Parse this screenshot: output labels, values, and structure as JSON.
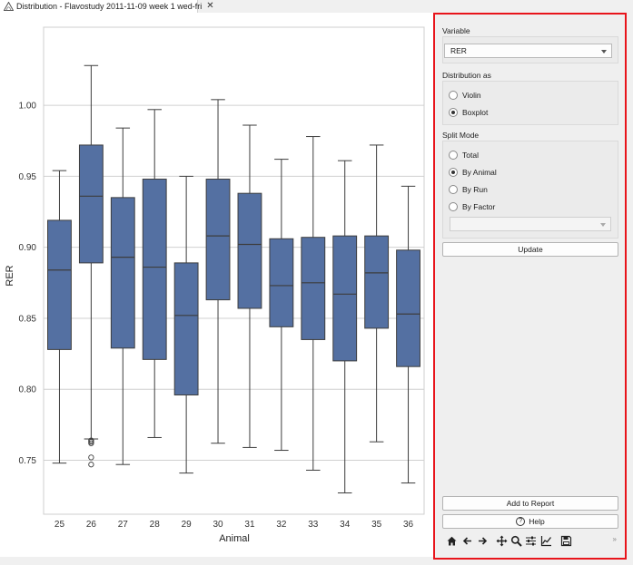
{
  "tab": {
    "title": "Distribution - Flavostudy 2011-11-09 week 1 wed-fri",
    "close_glyph": "✕",
    "icon": "distribution-icon"
  },
  "chart_data": {
    "type": "boxplot",
    "xlabel": "Animal",
    "ylabel": "RER",
    "categories": [
      "25",
      "26",
      "27",
      "28",
      "29",
      "30",
      "31",
      "32",
      "33",
      "34",
      "35",
      "36"
    ],
    "ylim": [
      0.712,
      1.055
    ],
    "yticks": [
      0.75,
      0.8,
      0.85,
      0.9,
      0.95,
      1.0
    ],
    "ytick_labels": [
      "0.75",
      "0.80",
      "0.85",
      "0.90",
      "0.95",
      "1.00"
    ],
    "grid": true,
    "box_color": "#5470a2",
    "boxes": [
      {
        "animal": "25",
        "whisker_low": 0.748,
        "q1": 0.828,
        "median": 0.884,
        "q3": 0.919,
        "whisker_high": 0.954,
        "outliers": []
      },
      {
        "animal": "26",
        "whisker_low": 0.765,
        "q1": 0.889,
        "median": 0.936,
        "q3": 0.972,
        "whisker_high": 1.028,
        "outliers": [
          0.764,
          0.763,
          0.762,
          0.752,
          0.747
        ]
      },
      {
        "animal": "27",
        "whisker_low": 0.747,
        "q1": 0.829,
        "median": 0.893,
        "q3": 0.935,
        "whisker_high": 0.984,
        "outliers": []
      },
      {
        "animal": "28",
        "whisker_low": 0.766,
        "q1": 0.821,
        "median": 0.886,
        "q3": 0.948,
        "whisker_high": 0.997,
        "outliers": []
      },
      {
        "animal": "29",
        "whisker_low": 0.741,
        "q1": 0.796,
        "median": 0.852,
        "q3": 0.889,
        "whisker_high": 0.95,
        "outliers": []
      },
      {
        "animal": "30",
        "whisker_low": 0.762,
        "q1": 0.863,
        "median": 0.908,
        "q3": 0.948,
        "whisker_high": 1.004,
        "outliers": []
      },
      {
        "animal": "31",
        "whisker_low": 0.759,
        "q1": 0.857,
        "median": 0.902,
        "q3": 0.938,
        "whisker_high": 0.986,
        "outliers": []
      },
      {
        "animal": "32",
        "whisker_low": 0.757,
        "q1": 0.844,
        "median": 0.873,
        "q3": 0.906,
        "whisker_high": 0.962,
        "outliers": []
      },
      {
        "animal": "33",
        "whisker_low": 0.743,
        "q1": 0.835,
        "median": 0.875,
        "q3": 0.907,
        "whisker_high": 0.978,
        "outliers": []
      },
      {
        "animal": "34",
        "whisker_low": 0.727,
        "q1": 0.82,
        "median": 0.867,
        "q3": 0.908,
        "whisker_high": 0.961,
        "outliers": []
      },
      {
        "animal": "35",
        "whisker_low": 0.763,
        "q1": 0.843,
        "median": 0.882,
        "q3": 0.908,
        "whisker_high": 0.972,
        "outliers": []
      },
      {
        "animal": "36",
        "whisker_low": 0.734,
        "q1": 0.816,
        "median": 0.853,
        "q3": 0.898,
        "whisker_high": 0.943,
        "outliers": []
      }
    ]
  },
  "panel": {
    "variable": {
      "title": "Variable",
      "selected": "RER"
    },
    "distribution": {
      "title": "Distribution as",
      "options": [
        "Violin",
        "Boxplot"
      ],
      "selected_index": 1
    },
    "split_mode": {
      "title": "Split Mode",
      "options": [
        "Total",
        "By Animal",
        "By Run",
        "By Factor"
      ],
      "selected_index": 1,
      "factor_selected": ""
    },
    "update_label": "Update",
    "add_report_label": "Add to Report",
    "help_label": "Help",
    "toolbar": {
      "icons": [
        "home-icon",
        "back-arrow-icon",
        "forward-arrow-icon",
        "pan-icon",
        "zoom-icon",
        "configure-subplots-icon",
        "edit-axis-icon",
        "save-icon"
      ],
      "overflow": "»"
    },
    "accent_border": "#e8141b"
  }
}
